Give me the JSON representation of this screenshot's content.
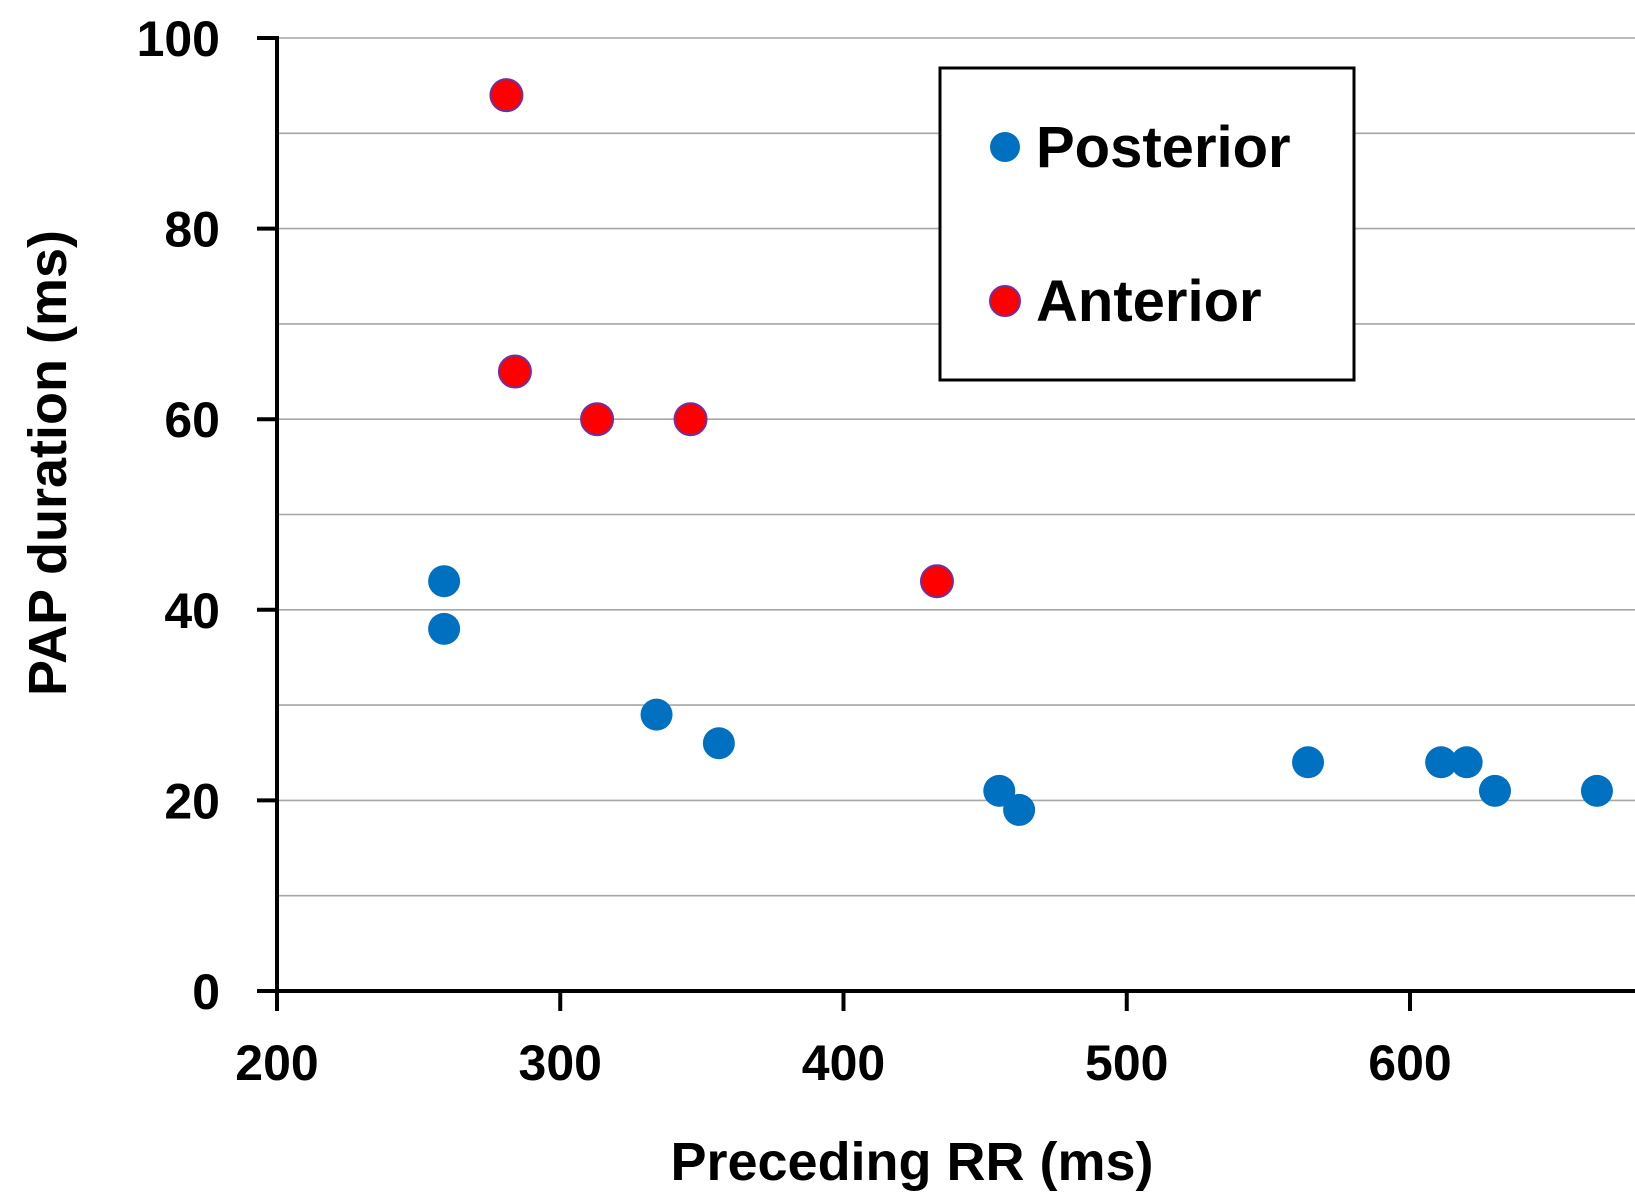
{
  "chart_data": {
    "type": "scatter",
    "title": "",
    "xlabel": "Preceding RR (ms)",
    "ylabel": "PAP duration (ms)",
    "xlim": [
      200,
      700
    ],
    "ylim": [
      0,
      100
    ],
    "x_ticks": [
      200,
      300,
      400,
      500,
      600
    ],
    "y_ticks": [
      0,
      20,
      40,
      60,
      80,
      100
    ],
    "grid": "horizontal",
    "legend_position": "top-right",
    "series": [
      {
        "name": "Posterior",
        "color": "#0070C0",
        "points": [
          {
            "x": 259,
            "y": 43
          },
          {
            "x": 259,
            "y": 38
          },
          {
            "x": 334,
            "y": 29
          },
          {
            "x": 356,
            "y": 26
          },
          {
            "x": 455,
            "y": 21
          },
          {
            "x": 462,
            "y": 19
          },
          {
            "x": 564,
            "y": 24
          },
          {
            "x": 611,
            "y": 24
          },
          {
            "x": 620,
            "y": 24
          },
          {
            "x": 630,
            "y": 21
          },
          {
            "x": 666,
            "y": 21
          }
        ]
      },
      {
        "name": "Anterior",
        "color": "#FF0000",
        "points": [
          {
            "x": 281,
            "y": 94
          },
          {
            "x": 284,
            "y": 65
          },
          {
            "x": 313,
            "y": 60
          },
          {
            "x": 346,
            "y": 60
          },
          {
            "x": 433,
            "y": 43
          }
        ]
      }
    ]
  }
}
